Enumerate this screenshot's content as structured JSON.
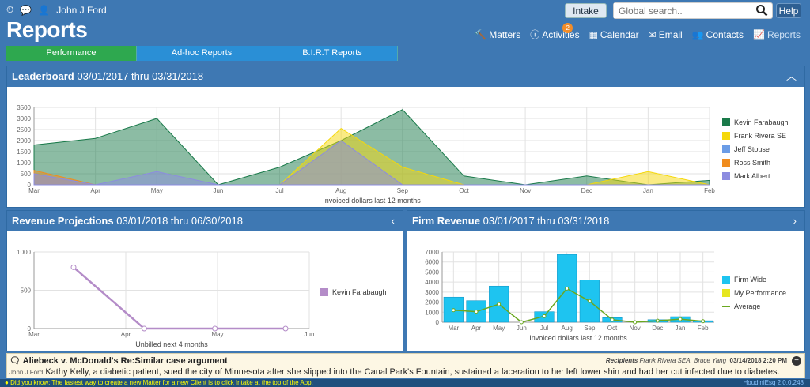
{
  "topbar": {
    "user": "John J Ford",
    "title": "Reports",
    "intake": "Intake",
    "search_placeholder": "Global search..",
    "help": "Help"
  },
  "nav": {
    "matters": "Matters",
    "activities": "Activities",
    "activities_badge": "2",
    "calendar": "Calendar",
    "email": "Email",
    "contacts": "Contacts",
    "reports": "Reports"
  },
  "tabs": [
    "Performance",
    "Ad-hoc Reports",
    "B.I.R.T Reports"
  ],
  "leaderboard": {
    "title": "Leaderboard",
    "range": "03/01/2017 thru 03/31/2018"
  },
  "revenue_projections": {
    "title": "Revenue Projections",
    "range": "03/01/2018 thru 06/30/2018"
  },
  "firm_revenue": {
    "title": "Firm Revenue",
    "range": "03/01/2017 thru 03/31/2018"
  },
  "chart_data": [
    {
      "type": "area",
      "title": "",
      "xlabel": "Invoiced dollars last 12 months",
      "ylabel": "",
      "categories": [
        "Mar",
        "Apr",
        "May",
        "Jun",
        "Jul",
        "Aug",
        "Sep",
        "Oct",
        "Nov",
        "Dec",
        "Jan",
        "Feb"
      ],
      "ylim": [
        0,
        3500
      ],
      "yticks": [
        0,
        500,
        1000,
        1500,
        2000,
        2500,
        3000,
        3500
      ],
      "grid": true,
      "legend": "right",
      "series": [
        {
          "name": "Kevin Farabaugh",
          "color": "#1a7a4a",
          "values": [
            1800,
            2100,
            3000,
            0,
            800,
            2000,
            3400,
            400,
            0,
            400,
            0,
            200
          ]
        },
        {
          "name": "Frank Rivera SE",
          "color": "#f5d80a",
          "values": [
            0,
            0,
            0,
            0,
            0,
            2550,
            800,
            0,
            0,
            0,
            600,
            0
          ]
        },
        {
          "name": "Jeff Stouse",
          "color": "#6b9ce6",
          "values": [
            0,
            0,
            0,
            0,
            0,
            0,
            0,
            0,
            0,
            0,
            0,
            0
          ]
        },
        {
          "name": "Ross Smith",
          "color": "#f08c1e",
          "values": [
            650,
            0,
            0,
            0,
            0,
            0,
            0,
            0,
            0,
            0,
            0,
            0
          ]
        },
        {
          "name": "Mark Albert",
          "color": "#8c8ce0",
          "values": [
            500,
            0,
            600,
            0,
            0,
            2000,
            0,
            0,
            0,
            0,
            0,
            0
          ]
        }
      ]
    },
    {
      "type": "line",
      "title": "",
      "xlabel": "Unbilled next 4 months",
      "ylabel": "",
      "categories": [
        "Mar",
        "Apr",
        "May",
        "Jun"
      ],
      "ylim": [
        0,
        1000
      ],
      "yticks": [
        0,
        500,
        1000
      ],
      "grid": true,
      "legend": "right",
      "series": [
        {
          "name": "Kevin Farabaugh",
          "color": "#b48cc8",
          "values": [
            800,
            0,
            0,
            0
          ]
        }
      ]
    },
    {
      "type": "bar",
      "title": "",
      "xlabel": "Invoiced dollars last 12 months",
      "ylabel": "",
      "categories": [
        "Mar",
        "Apr",
        "May",
        "Jun",
        "Jul",
        "Aug",
        "Sep",
        "Oct",
        "Nov",
        "Dec",
        "Jan",
        "Feb"
      ],
      "ylim": [
        0,
        7000
      ],
      "yticks": [
        0,
        1000,
        2000,
        3000,
        4000,
        5000,
        6000,
        7000
      ],
      "grid": true,
      "legend": "right",
      "series": [
        {
          "name": "Firm Wide",
          "color": "#1ec4f0",
          "values": [
            2500,
            2150,
            3600,
            0,
            1050,
            6750,
            4200,
            450,
            0,
            250,
            550,
            150
          ]
        },
        {
          "name": "My Performance",
          "color": "#e6e620",
          "values": [
            0,
            0,
            0,
            0,
            0,
            0,
            0,
            0,
            0,
            0,
            0,
            0
          ]
        },
        {
          "name": "Average",
          "color": "#6aa820",
          "values": [
            1200,
            1050,
            1800,
            0,
            600,
            3350,
            2100,
            250,
            0,
            150,
            300,
            100
          ]
        }
      ]
    }
  ],
  "note": {
    "title": "Aliebeck v. McDonald's Re:Similar case argument",
    "recipients_label": "Recipients",
    "recipients": "Frank Rivera SEA, Bruce Yang",
    "date": "03/14/2018 2:20 PM",
    "author": "John J Ford",
    "body": "Kathy Kelly, a diabetic patient, sued the city of Minnesota after she slipped into the Canal Park's Fountain, sustained a laceration to her left lower shin and had her cut infected due to diabetes."
  },
  "footer": {
    "tip": "Did you know:  The fastest way to create a new Matter for a new Client is to click Intake at the top of the App.",
    "version": "HoudiniEsq 2.0.0.248"
  }
}
